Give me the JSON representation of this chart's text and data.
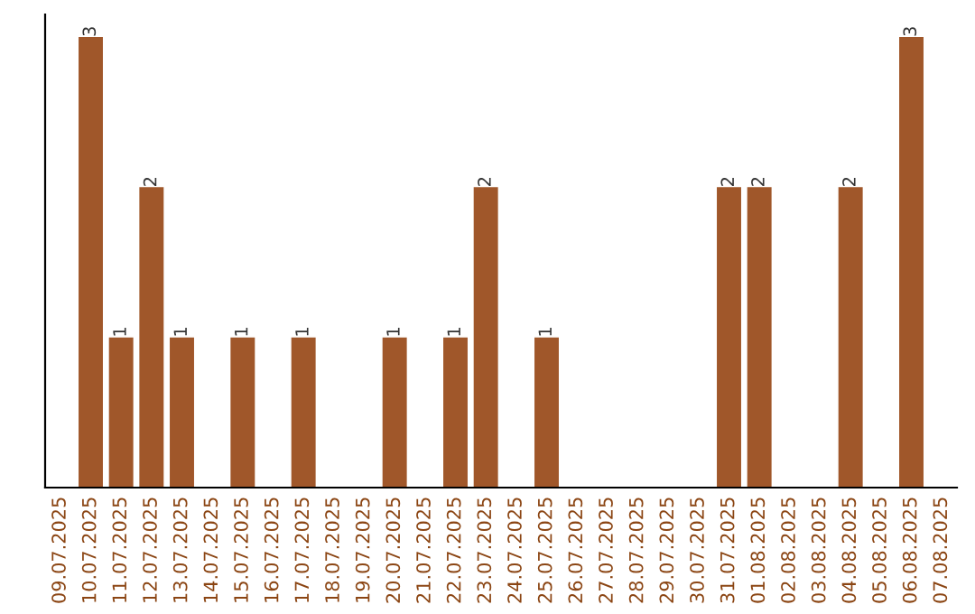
{
  "chart_data": {
    "type": "bar",
    "categories": [
      "09.07.2025",
      "10.07.2025",
      "11.07.2025",
      "12.07.2025",
      "13.07.2025",
      "14.07.2025",
      "15.07.2025",
      "16.07.2025",
      "17.07.2025",
      "18.07.2025",
      "19.07.2025",
      "20.07.2025",
      "21.07.2025",
      "22.07.2025",
      "23.07.2025",
      "24.07.2025",
      "25.07.2025",
      "26.07.2025",
      "27.07.2025",
      "28.07.2025",
      "29.07.2025",
      "30.07.2025",
      "31.07.2025",
      "01.08.2025",
      "02.08.2025",
      "03.08.2025",
      "04.08.2025",
      "05.08.2025",
      "06.08.2025",
      "07.08.2025"
    ],
    "values": [
      0,
      3,
      1,
      2,
      1,
      0,
      1,
      0,
      1,
      0,
      0,
      1,
      0,
      1,
      2,
      0,
      1,
      0,
      0,
      0,
      0,
      0,
      2,
      2,
      0,
      0,
      2,
      0,
      3,
      0
    ],
    "value_labels": [
      null,
      "3",
      "1",
      "2",
      "1",
      null,
      "1",
      null,
      "1",
      null,
      null,
      "1",
      null,
      "1",
      "2",
      null,
      "1",
      null,
      null,
      null,
      null,
      null,
      "2",
      "2",
      null,
      null,
      "2",
      null,
      "3",
      null
    ],
    "color": "#a0572a",
    "ylim": [
      0,
      3.15
    ],
    "tick_labels": "x",
    "grid": false,
    "legend": false
  }
}
